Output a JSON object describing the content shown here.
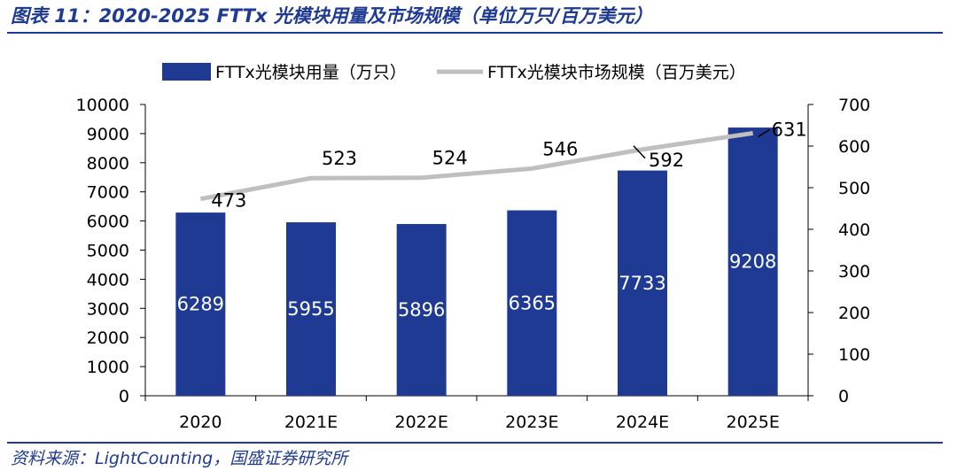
{
  "figure_title": "图表 11：2020-2025 FTTx 光模块用量及市场规模（单位万只/百万美元）",
  "source": "资料来源：LightCounting，国盛证券研究所",
  "colors": {
    "bar": "#1f3a93",
    "line": "#bfbfbf",
    "title": "#1f3a93",
    "text": "#000000",
    "bar_label": "#ffffff"
  },
  "chart_data": {
    "type": "bar",
    "categories": [
      "2020",
      "2021E",
      "2022E",
      "2023E",
      "2024E",
      "2025E"
    ],
    "series": [
      {
        "name": "FTTx光模块用量（万只）",
        "type": "bar",
        "axis": "left",
        "values": [
          6289,
          5955,
          5896,
          6365,
          7733,
          9208
        ]
      },
      {
        "name": "FTTx光模块市场规模（百万美元）",
        "type": "line",
        "axis": "right",
        "values": [
          473,
          523,
          524,
          546,
          592,
          631
        ]
      }
    ],
    "y_left": {
      "min": 0,
      "max": 10000,
      "ticks": [
        0,
        1000,
        2000,
        3000,
        4000,
        5000,
        6000,
        7000,
        8000,
        9000,
        10000
      ]
    },
    "y_right": {
      "min": 0,
      "max": 700,
      "ticks": [
        0,
        100,
        200,
        300,
        400,
        500,
        600,
        700
      ]
    },
    "legend_position": "top-center",
    "grid": false
  }
}
